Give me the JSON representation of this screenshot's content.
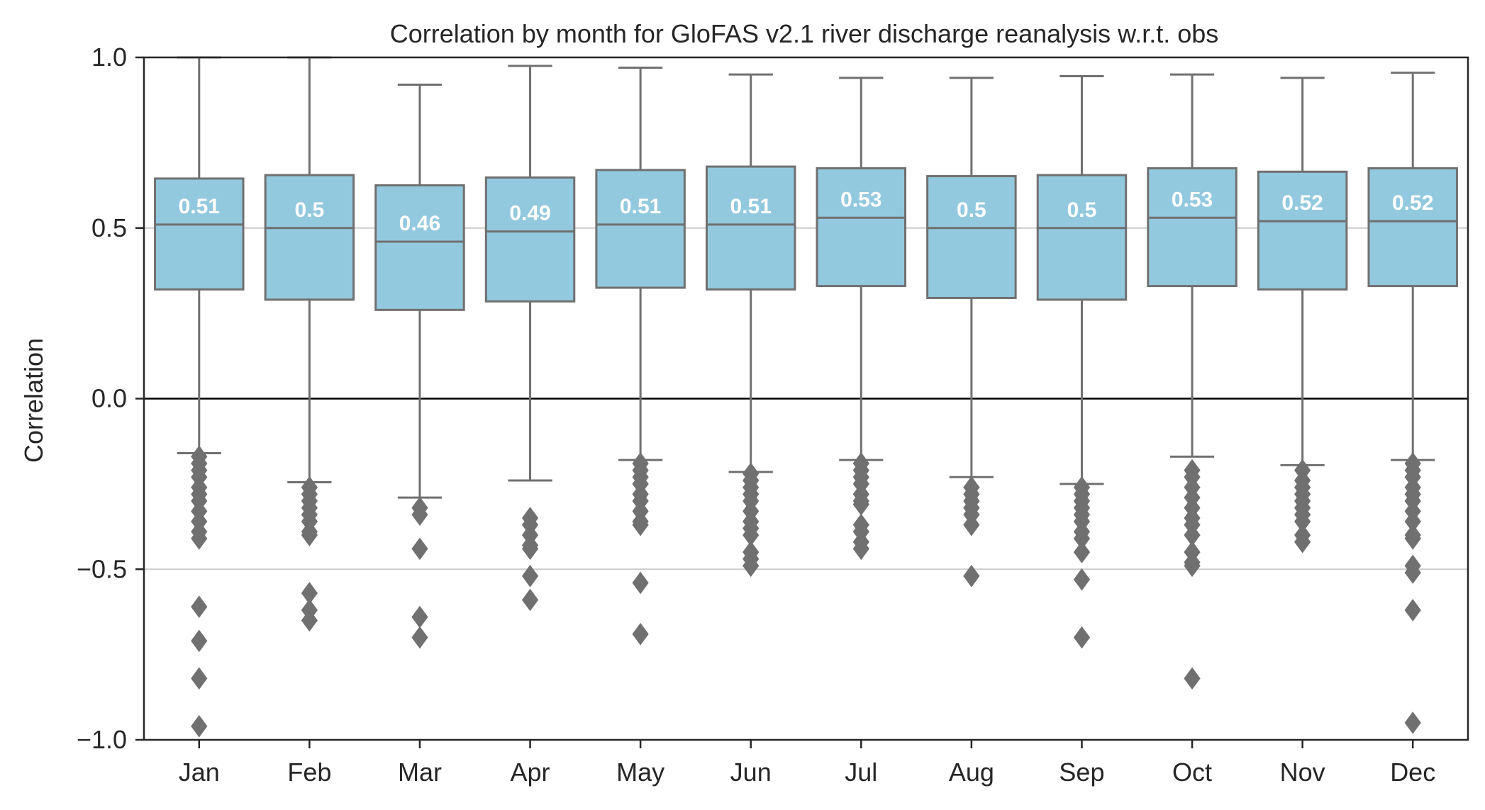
{
  "colors": {
    "box_fill": "#93c9df",
    "box_edge": "#707070",
    "outlier": "#707070",
    "grid": "#cccccc",
    "zero_line": "#000000",
    "frame": "#262626",
    "median_text": "#ffffff"
  },
  "chart_data": {
    "type": "box",
    "title": "Correlation by month for GloFAS v2.1 river discharge reanalysis w.r.t. obs",
    "xlabel": "",
    "ylabel": "Correlation",
    "ylim": [
      -1.0,
      1.0
    ],
    "yticks": [
      -1.0,
      -0.5,
      0.0,
      0.5,
      1.0
    ],
    "ytick_labels": [
      "−1.0",
      "−0.5",
      "0.0",
      "0.5",
      "1.0"
    ],
    "grid": "horizontal",
    "categories": [
      "Jan",
      "Feb",
      "Mar",
      "Apr",
      "May",
      "Jun",
      "Jul",
      "Aug",
      "Sep",
      "Oct",
      "Nov",
      "Dec"
    ],
    "boxes": [
      {
        "label": "Jan",
        "whisker_low": -0.16,
        "q1": 0.32,
        "median": 0.51,
        "q3": 0.645,
        "whisker_high": 1.0,
        "median_label": "0.51",
        "outliers": [
          -0.17,
          -0.19,
          -0.21,
          -0.23,
          -0.26,
          -0.28,
          -0.3,
          -0.33,
          -0.36,
          -0.39,
          -0.41,
          -0.61,
          -0.71,
          -0.82,
          -0.96
        ]
      },
      {
        "label": "Feb",
        "whisker_low": -0.245,
        "q1": 0.29,
        "median": 0.5,
        "q3": 0.655,
        "whisker_high": 1.0,
        "median_label": "0.5",
        "outliers": [
          -0.26,
          -0.28,
          -0.3,
          -0.32,
          -0.34,
          -0.36,
          -0.39,
          -0.4,
          -0.57,
          -0.62,
          -0.65
        ]
      },
      {
        "label": "Mar",
        "whisker_low": -0.29,
        "q1": 0.26,
        "median": 0.46,
        "q3": 0.625,
        "whisker_high": 0.92,
        "median_label": "0.46",
        "outliers": [
          -0.32,
          -0.34,
          -0.44,
          -0.64,
          -0.7
        ]
      },
      {
        "label": "Apr",
        "whisker_low": -0.24,
        "q1": 0.285,
        "median": 0.49,
        "q3": 0.648,
        "whisker_high": 0.975,
        "median_label": "0.49",
        "outliers": [
          -0.35,
          -0.37,
          -0.4,
          -0.43,
          -0.44,
          -0.52,
          -0.59
        ]
      },
      {
        "label": "May",
        "whisker_low": -0.18,
        "q1": 0.325,
        "median": 0.51,
        "q3": 0.67,
        "whisker_high": 0.97,
        "median_label": "0.51",
        "outliers": [
          -0.19,
          -0.21,
          -0.23,
          -0.25,
          -0.28,
          -0.3,
          -0.33,
          -0.36,
          -0.37,
          -0.54,
          -0.69
        ]
      },
      {
        "label": "Jun",
        "whisker_low": -0.215,
        "q1": 0.32,
        "median": 0.51,
        "q3": 0.68,
        "whisker_high": 0.95,
        "median_label": "0.51",
        "outliers": [
          -0.22,
          -0.24,
          -0.26,
          -0.28,
          -0.3,
          -0.33,
          -0.36,
          -0.38,
          -0.4,
          -0.45,
          -0.47,
          -0.49
        ]
      },
      {
        "label": "Jul",
        "whisker_low": -0.18,
        "q1": 0.33,
        "median": 0.53,
        "q3": 0.675,
        "whisker_high": 0.94,
        "median_label": "0.53",
        "outliers": [
          -0.19,
          -0.21,
          -0.23,
          -0.25,
          -0.28,
          -0.3,
          -0.31,
          -0.37,
          -0.39,
          -0.42,
          -0.44
        ]
      },
      {
        "label": "Aug",
        "whisker_low": -0.23,
        "q1": 0.295,
        "median": 0.5,
        "q3": 0.652,
        "whisker_high": 0.94,
        "median_label": "0.5",
        "outliers": [
          -0.26,
          -0.28,
          -0.3,
          -0.32,
          -0.34,
          -0.37,
          -0.52
        ]
      },
      {
        "label": "Sep",
        "whisker_low": -0.25,
        "q1": 0.29,
        "median": 0.5,
        "q3": 0.655,
        "whisker_high": 0.945,
        "median_label": "0.5",
        "outliers": [
          -0.26,
          -0.28,
          -0.3,
          -0.32,
          -0.34,
          -0.36,
          -0.39,
          -0.41,
          -0.45,
          -0.53,
          -0.7
        ]
      },
      {
        "label": "Oct",
        "whisker_low": -0.17,
        "q1": 0.33,
        "median": 0.53,
        "q3": 0.675,
        "whisker_high": 0.95,
        "median_label": "0.53",
        "outliers": [
          -0.21,
          -0.23,
          -0.26,
          -0.29,
          -0.32,
          -0.35,
          -0.37,
          -0.4,
          -0.45,
          -0.48,
          -0.49,
          -0.82
        ]
      },
      {
        "label": "Nov",
        "whisker_low": -0.195,
        "q1": 0.32,
        "median": 0.52,
        "q3": 0.665,
        "whisker_high": 0.94,
        "median_label": "0.52",
        "outliers": [
          -0.21,
          -0.24,
          -0.26,
          -0.28,
          -0.3,
          -0.32,
          -0.34,
          -0.36,
          -0.4,
          -0.42
        ]
      },
      {
        "label": "Dec",
        "whisker_low": -0.18,
        "q1": 0.33,
        "median": 0.52,
        "q3": 0.675,
        "whisker_high": 0.955,
        "median_label": "0.52",
        "outliers": [
          -0.19,
          -0.21,
          -0.23,
          -0.26,
          -0.28,
          -0.3,
          -0.33,
          -0.36,
          -0.4,
          -0.41,
          -0.49,
          -0.51,
          -0.62,
          -0.95
        ]
      }
    ]
  }
}
